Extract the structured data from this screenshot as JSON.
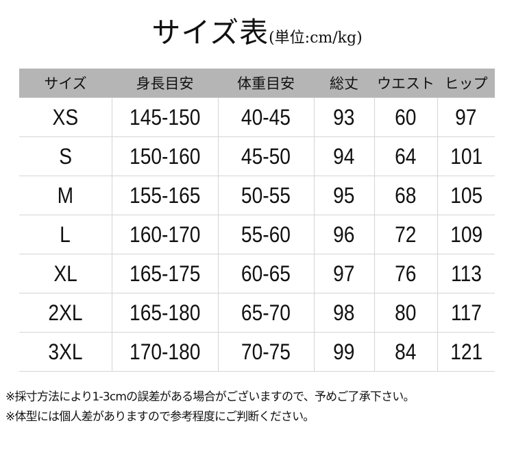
{
  "title": {
    "main": "サイズ表",
    "unit": "(単位:cm/kg)"
  },
  "table": {
    "headers": [
      "サイズ",
      "身長目安",
      "体重目安",
      "総丈",
      "ウエスト",
      "ヒップ"
    ],
    "rows": [
      [
        "XS",
        "145-150",
        "40-45",
        "93",
        "60",
        "97"
      ],
      [
        "S",
        "150-160",
        "45-50",
        "94",
        "64",
        "101"
      ],
      [
        "M",
        "155-165",
        "50-55",
        "95",
        "68",
        "105"
      ],
      [
        "L",
        "160-170",
        "55-60",
        "96",
        "72",
        "109"
      ],
      [
        "XL",
        "165-175",
        "60-65",
        "97",
        "76",
        "113"
      ],
      [
        "2XL",
        "165-180",
        "65-70",
        "98",
        "80",
        "117"
      ],
      [
        "3XL",
        "170-180",
        "70-75",
        "99",
        "84",
        "121"
      ]
    ]
  },
  "notes": [
    "※採寸方法により1-3cmの誤差がある場合がございますので、予めご了承下さい。",
    "※体型には個人差がありますので参考程度にご判断ください。"
  ],
  "colors": {
    "header_bg": "#b5b5b5",
    "grid": "#d4d4d4"
  }
}
